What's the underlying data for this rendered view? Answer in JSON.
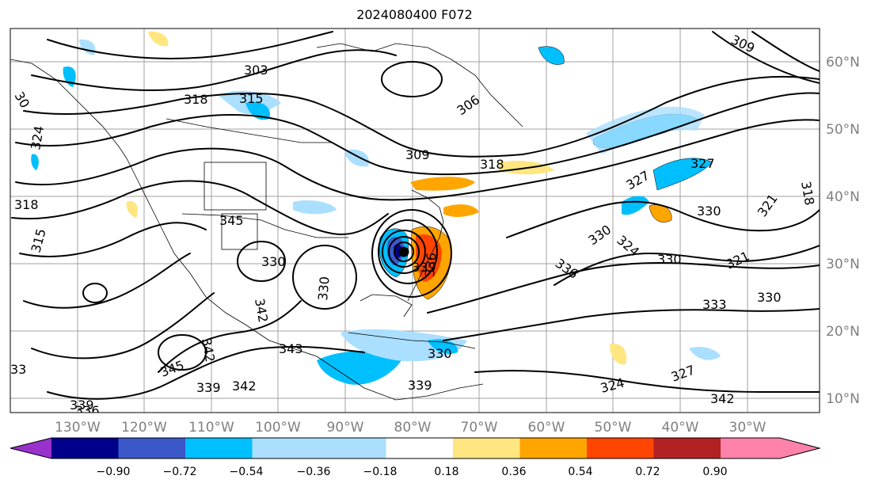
{
  "title": "2024080400 F072",
  "map": {
    "lon_labels": [
      "130°W",
      "120°W",
      "110°W",
      "100°W",
      "90°W",
      "80°W",
      "70°W",
      "60°W",
      "50°W",
      "40°W",
      "30°W"
    ],
    "lat_labels": [
      "60°N",
      "50°N",
      "40°N",
      "30°N",
      "20°N",
      "10°N"
    ],
    "contour_labels": [
      "303",
      "318",
      "315",
      "306",
      "309",
      "309",
      "318",
      "324",
      "318",
      "315",
      "345",
      "330",
      "327",
      "327",
      "330",
      "330",
      "324",
      "330",
      "321",
      "321",
      "318",
      "333",
      "330",
      "339",
      "336",
      "330",
      "336",
      "342",
      "343",
      "330",
      "342",
      "345",
      "339",
      "342",
      "339",
      "324",
      "327",
      "342",
      "339",
      "336",
      "33",
      "30"
    ]
  },
  "colorbar": {
    "tick_labels": [
      "−0.90",
      "−0.72",
      "−0.54",
      "−0.36",
      "−0.18",
      "0.18",
      "0.36",
      "0.54",
      "0.72",
      "0.90"
    ],
    "colors": [
      "#9932cc",
      "#00008b",
      "#3a58c8",
      "#00bfff",
      "#aadfff",
      "#ffffff",
      "#ffe680",
      "#ffa500",
      "#ff4500",
      "#b22222",
      "#ff82ab"
    ]
  }
}
